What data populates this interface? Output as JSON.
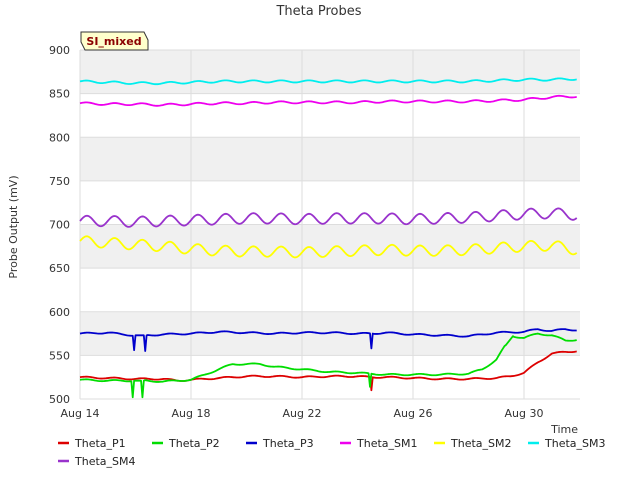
{
  "chart_data": {
    "type": "line",
    "title": "Theta Probes",
    "xlabel": "Time",
    "ylabel": "Probe Output (mV)",
    "badge": "SI_mixed",
    "ylim": [
      500,
      900
    ],
    "yticks": [
      500,
      550,
      600,
      650,
      700,
      750,
      800,
      850,
      900
    ],
    "xlim": [
      0,
      18
    ],
    "xticks": [
      {
        "day": 0,
        "label": "Aug 14"
      },
      {
        "day": 4,
        "label": "Aug 18"
      },
      {
        "day": 8,
        "label": "Aug 22"
      },
      {
        "day": 12,
        "label": "Aug 26"
      },
      {
        "day": 16,
        "label": "Aug 30"
      }
    ],
    "grid": true,
    "legend_position": "bottom",
    "series": [
      {
        "name": "Theta_P1",
        "color": "#dd0000",
        "points": [
          [
            0,
            525
          ],
          [
            1,
            524
          ],
          [
            2,
            523
          ],
          [
            3,
            523
          ],
          [
            3.5,
            521
          ],
          [
            4,
            522
          ],
          [
            5,
            524
          ],
          [
            6,
            526
          ],
          [
            7,
            526
          ],
          [
            8,
            525
          ],
          [
            9,
            526
          ],
          [
            10,
            526
          ],
          [
            10.45,
            525
          ],
          [
            10.5,
            510
          ],
          [
            10.55,
            525
          ],
          [
            11,
            525
          ],
          [
            12,
            524
          ],
          [
            13,
            523
          ],
          [
            14,
            523
          ],
          [
            15,
            524
          ],
          [
            15.5,
            526
          ],
          [
            16,
            530
          ],
          [
            16.5,
            542
          ],
          [
            17,
            552
          ],
          [
            17.5,
            554
          ],
          [
            17.9,
            555
          ]
        ]
      },
      {
        "name": "Theta_P2",
        "color": "#00dd00",
        "points": [
          [
            0,
            522
          ],
          [
            1,
            521
          ],
          [
            1.85,
            521
          ],
          [
            1.9,
            502
          ],
          [
            1.95,
            521
          ],
          [
            2.2,
            521
          ],
          [
            2.25,
            502
          ],
          [
            2.3,
            521
          ],
          [
            3,
            520
          ],
          [
            4,
            522
          ],
          [
            4.5,
            528
          ],
          [
            5,
            534
          ],
          [
            5.5,
            540
          ],
          [
            6,
            540
          ],
          [
            6.5,
            540
          ],
          [
            7,
            537
          ],
          [
            8,
            534
          ],
          [
            9,
            531
          ],
          [
            10,
            530
          ],
          [
            10.4,
            529
          ],
          [
            10.45,
            514
          ],
          [
            10.5,
            529
          ],
          [
            11,
            528
          ],
          [
            12,
            528
          ],
          [
            13,
            528
          ],
          [
            14,
            529
          ],
          [
            14.5,
            534
          ],
          [
            15,
            545
          ],
          [
            15.3,
            560
          ],
          [
            15.6,
            572
          ],
          [
            16,
            570
          ],
          [
            16.5,
            575
          ],
          [
            17,
            573
          ],
          [
            17.5,
            567
          ],
          [
            17.9,
            568
          ]
        ]
      },
      {
        "name": "Theta_P3",
        "color": "#0000cc",
        "points": [
          [
            0,
            575
          ],
          [
            1,
            576
          ],
          [
            1.9,
            573
          ],
          [
            1.95,
            556
          ],
          [
            2,
            573
          ],
          [
            2.3,
            573
          ],
          [
            2.35,
            555
          ],
          [
            2.4,
            573
          ],
          [
            3,
            574
          ],
          [
            4,
            575
          ],
          [
            5,
            577
          ],
          [
            6,
            576
          ],
          [
            7,
            575
          ],
          [
            8,
            576
          ],
          [
            9,
            576
          ],
          [
            10,
            575
          ],
          [
            10.45,
            575
          ],
          [
            10.5,
            558
          ],
          [
            10.55,
            575
          ],
          [
            11,
            576
          ],
          [
            12,
            574
          ],
          [
            13,
            573
          ],
          [
            14,
            572
          ],
          [
            15,
            576
          ],
          [
            16,
            577
          ],
          [
            16.5,
            580
          ],
          [
            17,
            578
          ],
          [
            17.5,
            580
          ],
          [
            17.9,
            579
          ]
        ]
      },
      {
        "name": "Theta_SM1",
        "color": "#ee00ee",
        "points": [
          [
            0,
            839
          ],
          [
            1,
            838
          ],
          [
            2,
            838
          ],
          [
            3,
            837
          ],
          [
            4,
            838
          ],
          [
            5,
            839
          ],
          [
            6,
            839
          ],
          [
            7,
            840
          ],
          [
            8,
            840
          ],
          [
            9,
            840
          ],
          [
            10,
            840
          ],
          [
            11,
            841
          ],
          [
            12,
            841
          ],
          [
            13,
            841
          ],
          [
            14,
            841
          ],
          [
            15,
            842
          ],
          [
            16,
            843
          ],
          [
            17,
            846
          ],
          [
            17.9,
            847
          ]
        ]
      },
      {
        "name": "Theta_SM2",
        "color": "#ffff00",
        "points": [
          [
            0,
            681
          ],
          [
            1,
            679
          ],
          [
            2,
            677
          ],
          [
            3,
            675
          ],
          [
            4,
            672
          ],
          [
            5,
            670
          ],
          [
            6,
            669
          ],
          [
            7,
            669
          ],
          [
            8,
            668
          ],
          [
            9,
            669
          ],
          [
            10,
            670
          ],
          [
            11,
            671
          ],
          [
            12,
            670
          ],
          [
            13,
            670
          ],
          [
            14,
            671
          ],
          [
            15,
            673
          ],
          [
            16,
            675
          ],
          [
            17,
            676
          ],
          [
            17.9,
            671
          ]
        ]
      },
      {
        "name": "Theta_SM3",
        "color": "#00eeee",
        "points": [
          [
            0,
            864
          ],
          [
            1,
            863
          ],
          [
            2,
            862
          ],
          [
            3,
            862
          ],
          [
            4,
            863
          ],
          [
            5,
            864
          ],
          [
            6,
            864
          ],
          [
            7,
            864
          ],
          [
            8,
            864
          ],
          [
            9,
            864
          ],
          [
            10,
            864
          ],
          [
            11,
            864
          ],
          [
            12,
            864
          ],
          [
            13,
            864
          ],
          [
            14,
            864
          ],
          [
            15,
            865
          ],
          [
            16,
            866
          ],
          [
            17,
            866
          ],
          [
            17.9,
            867
          ]
        ]
      },
      {
        "name": "Theta_SM4",
        "color": "#9933cc",
        "points": [
          [
            0,
            704
          ],
          [
            1,
            704
          ],
          [
            2,
            703
          ],
          [
            3,
            704
          ],
          [
            4,
            705
          ],
          [
            5,
            706
          ],
          [
            6,
            707
          ],
          [
            7,
            707
          ],
          [
            8,
            706
          ],
          [
            9,
            707
          ],
          [
            10,
            707
          ],
          [
            11,
            707
          ],
          [
            12,
            706
          ],
          [
            13,
            707
          ],
          [
            14,
            708
          ],
          [
            15,
            710
          ],
          [
            16,
            712
          ],
          [
            17,
            713
          ],
          [
            17.9,
            711
          ]
        ]
      }
    ]
  }
}
